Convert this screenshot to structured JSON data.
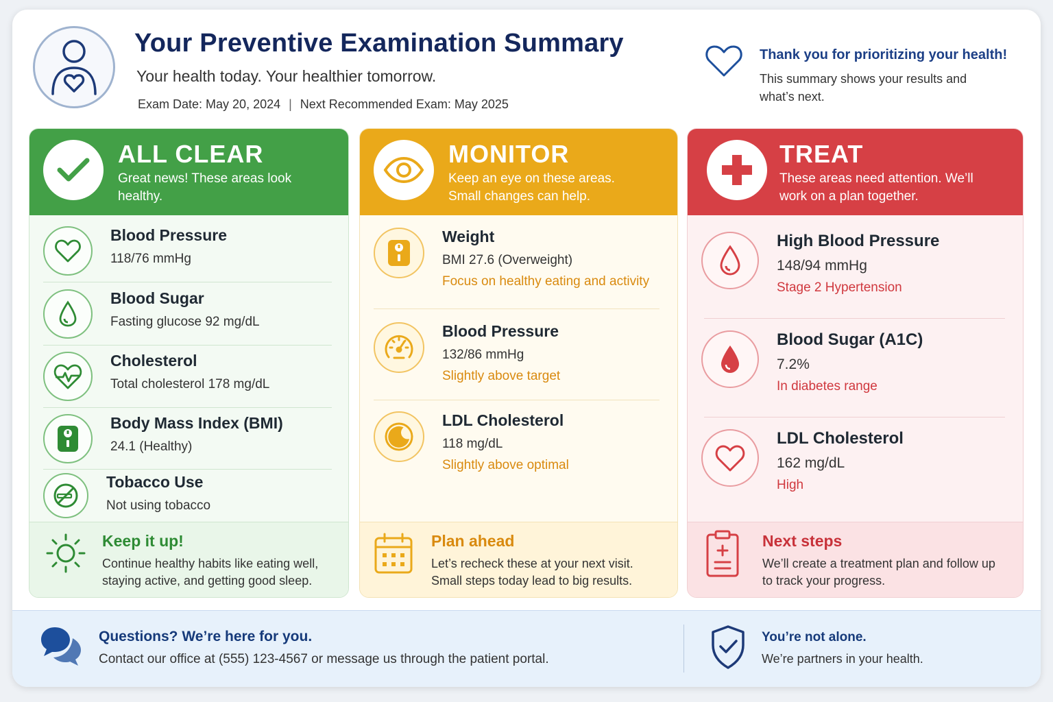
{
  "header": {
    "title": "Your Preventive Examination Summary",
    "subtitle": "Your health today. Your healthier tomorrow.",
    "exam_date": "Exam Date: May 20, 2024",
    "separator": "|",
    "next_exam": "Next Recommended Exam: May 2025",
    "thanks_title": "Thank you for prioritizing your health!",
    "thanks_text": "This summary shows your results and what’s next.",
    "avatar_icon": "person-heart-icon",
    "thanks_icon": "heart-outline-icon"
  },
  "columns": {
    "clear": {
      "title": "ALL CLEAR",
      "text": "Great news! These areas look healthy.",
      "color": "#43a047",
      "icon": "checkmark-icon",
      "items": [
        {
          "name": "Blood Pressure",
          "value": "118/76 mmHg",
          "icon": "heart-icon"
        },
        {
          "name": "Blood Sugar",
          "value": "Fasting glucose 92 mg/dL",
          "icon": "drop-icon"
        },
        {
          "name": "Cholesterol",
          "value": "Total cholesterol 178 mg/dL",
          "icon": "heartbeat-icon"
        },
        {
          "name": "Body Mass Index (BMI)",
          "value": "24.1 (Healthy)",
          "icon": "scale-icon"
        },
        {
          "name": "Tobacco Use",
          "value": "Not using tobacco",
          "icon": "no-smoking-icon"
        }
      ],
      "footer_title": "Keep it up!",
      "footer_text": "Continue healthy habits like eating well, staying active, and getting good sleep.",
      "footer_icon": "sun-icon"
    },
    "monitor": {
      "title": "MONITOR",
      "text": "Keep an eye on these areas. Small changes can help.",
      "color": "#eaa91a",
      "icon": "eye-icon",
      "items": [
        {
          "name": "Weight",
          "value": "BMI 27.6 (Overweight)",
          "note": "Focus on healthy eating and activity",
          "icon": "scale-icon"
        },
        {
          "name": "Blood Pressure",
          "value": "132/86 mmHg",
          "note": "Slightly above target",
          "icon": "gauge-icon"
        },
        {
          "name": "LDL Cholesterol",
          "value": "118 mg/dL",
          "note": "Slightly above optimal",
          "icon": "moon-icon"
        }
      ],
      "footer_title": "Plan ahead",
      "footer_text": "Let’s recheck these at your next visit. Small steps today lead to big results.",
      "footer_icon": "calendar-icon"
    },
    "treat": {
      "title": "TREAT",
      "text": "These areas need attention. We’ll work on a plan together.",
      "color": "#d64045",
      "icon": "medical-cross-icon",
      "items": [
        {
          "name": "High Blood Pressure",
          "value": "148/94 mmHg",
          "note": "Stage 2 Hypertension",
          "icon": "drop-outline-icon"
        },
        {
          "name": "Blood Sugar (A1C)",
          "value": "7.2%",
          "note": "In diabetes range",
          "icon": "drop-filled-icon"
        },
        {
          "name": "LDL Cholesterol",
          "value": "162 mg/dL",
          "note": "High",
          "icon": "heart-icon"
        }
      ],
      "footer_title": "Next steps",
      "footer_text": "We’ll create a treatment plan and follow up to track your progress.",
      "footer_icon": "clipboard-icon"
    }
  },
  "banner": {
    "questions_title": "Questions?  We’re here for you.",
    "questions_text": "Contact our office at (555) 123-4567 or message us through the patient portal.",
    "questions_icon": "chat-bubbles-icon",
    "support_title": "You’re not alone.",
    "support_text": "We’re partners in your health.",
    "support_icon": "shield-check-icon"
  }
}
